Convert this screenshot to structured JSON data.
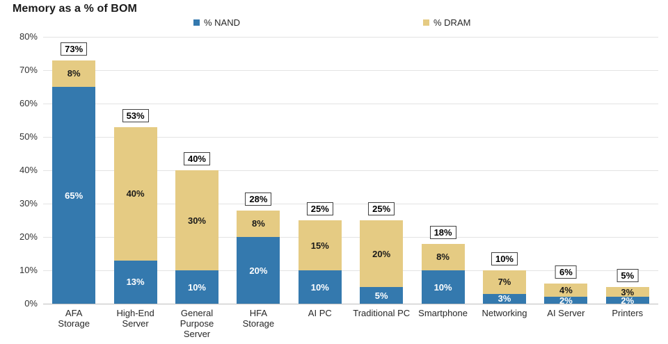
{
  "title": "Memory as a % of BOM",
  "legend": {
    "nand": {
      "label": "% NAND",
      "color": "#3479AE"
    },
    "dram": {
      "label": "% DRAM",
      "color": "#E5CB83"
    }
  },
  "colors": {
    "nand": "#3479AE",
    "dram": "#E5CB83",
    "nand_label_text": "#FFFFFF",
    "dram_label_text": "#1A1A1A",
    "gridline": "#E3E3E3",
    "axis_line": "#BFBFBF"
  },
  "chart_data": {
    "type": "bar",
    "stacked": true,
    "title": "Memory as a % of BOM",
    "legend_position": "top",
    "grid": true,
    "categories": [
      "AFA\nStorage",
      "High-End\nServer",
      "General\nPurpose\nServer",
      "HFA\nStorage",
      "AI PC",
      "Traditional PC",
      "Smartphone",
      "Networking",
      "AI Server",
      "Printers"
    ],
    "series": [
      {
        "name": "% NAND",
        "color": "#3479AE",
        "values": [
          65,
          13,
          10,
          20,
          10,
          5,
          10,
          3,
          2,
          2
        ],
        "labels": [
          "65%",
          "13%",
          "10%",
          "20%",
          "10%",
          "5%",
          "10%",
          "3%",
          "2%",
          "2%"
        ]
      },
      {
        "name": "% DRAM",
        "color": "#E5CB83",
        "values": [
          8,
          40,
          30,
          8,
          15,
          20,
          8,
          7,
          4,
          3
        ],
        "labels": [
          "8%",
          "40%",
          "30%",
          "8%",
          "15%",
          "20%",
          "8%",
          "7%",
          "4%",
          "3%"
        ]
      }
    ],
    "totals": {
      "values": [
        73,
        53,
        40,
        28,
        25,
        25,
        18,
        10,
        6,
        5
      ],
      "labels": [
        "73%",
        "53%",
        "40%",
        "28%",
        "25%",
        "25%",
        "18%",
        "10%",
        "6%",
        "5%"
      ]
    },
    "y_axis": {
      "min": 0,
      "max": 80,
      "step": 10,
      "ticks": [
        "80%",
        "70%",
        "60%",
        "50%",
        "40%",
        "30%",
        "20%",
        "10%",
        "0%"
      ]
    }
  }
}
